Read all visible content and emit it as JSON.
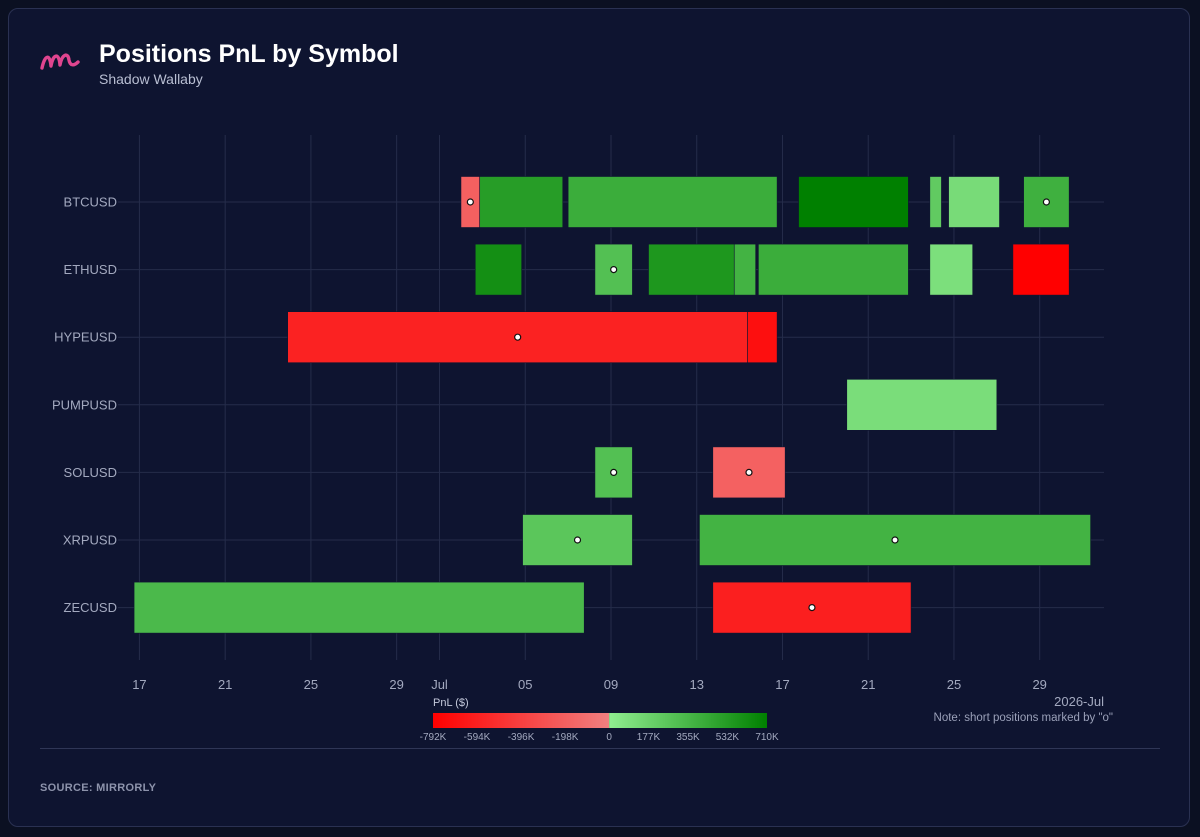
{
  "header": {
    "title": "Positions PnL by Symbol",
    "subtitle": "Shadow Wallaby",
    "logo_icon": "mirrorly-logo-icon"
  },
  "footer": {
    "source": "SOURCE: MIRRORLY",
    "note": "Note: short positions marked by \"o\""
  },
  "colors": {
    "background": "#0e1430",
    "grid": "#252c4a",
    "logo": "#e0458f",
    "negative_max": "#ff0000",
    "negative_min": "#f08080",
    "positive_min": "#90ee90",
    "positive_max": "#008000"
  },
  "chart_data": {
    "type": "timeline",
    "title": "Positions PnL by Symbol",
    "xlabel": "",
    "ylabel": "",
    "x_axis": {
      "type": "date",
      "start": "2026-06-16",
      "end": "2026-08-01",
      "tick_labels": [
        "17",
        "21",
        "25",
        "29",
        "Jul",
        "05",
        "09",
        "13",
        "17",
        "21",
        "25",
        "29"
      ],
      "tick_dates": [
        "2026-06-17",
        "2026-06-21",
        "2026-06-25",
        "2026-06-29",
        "2026-07-01",
        "2026-07-05",
        "2026-07-09",
        "2026-07-13",
        "2026-07-17",
        "2026-07-21",
        "2026-07-25",
        "2026-07-29"
      ],
      "secondary_label": "2026-Jul"
    },
    "categories": [
      "BTCUSD",
      "ETHUSD",
      "HYPEUSD",
      "PUMPUSD",
      "SOLUSD",
      "XRPUSD",
      "ZECUSD"
    ],
    "grid": true,
    "colorbar": {
      "title": "PnL ($)",
      "min": -792000,
      "max": 710000,
      "tick_labels": [
        "-792K",
        "-594K",
        "-396K",
        "-198K",
        "0",
        "177K",
        "355K",
        "532K",
        "710K"
      ],
      "tick_values": [
        -792000,
        -594000,
        -396000,
        -198000,
        0,
        177000,
        355000,
        532000,
        710000
      ]
    },
    "positions": [
      {
        "symbol": "BTCUSD",
        "start": "2026-07-02T00:00",
        "end": "2026-07-02T21:00",
        "pnl": -200000,
        "short": true
      },
      {
        "symbol": "BTCUSD",
        "start": "2026-07-02T21:00",
        "end": "2026-07-06T18:00",
        "pnl": 520000,
        "short": false
      },
      {
        "symbol": "BTCUSD",
        "start": "2026-07-07T00:00",
        "end": "2026-07-16T18:00",
        "pnl": 420000,
        "short": false
      },
      {
        "symbol": "BTCUSD",
        "start": "2026-07-17T18:00",
        "end": "2026-07-22T21:00",
        "pnl": 710000,
        "short": false
      },
      {
        "symbol": "BTCUSD",
        "start": "2026-07-23T21:00",
        "end": "2026-07-24T10:00",
        "pnl": 230000,
        "short": false
      },
      {
        "symbol": "BTCUSD",
        "start": "2026-07-24T18:00",
        "end": "2026-07-27T03:00",
        "pnl": 120000,
        "short": false
      },
      {
        "symbol": "BTCUSD",
        "start": "2026-07-28T06:00",
        "end": "2026-07-30T09:00",
        "pnl": 400000,
        "short": true
      },
      {
        "symbol": "ETHUSD",
        "start": "2026-07-02T16:00",
        "end": "2026-07-04T20:00",
        "pnl": 610000,
        "short": false
      },
      {
        "symbol": "ETHUSD",
        "start": "2026-07-08T06:00",
        "end": "2026-07-10T00:00",
        "pnl": 300000,
        "short": true
      },
      {
        "symbol": "ETHUSD",
        "start": "2026-07-10T18:00",
        "end": "2026-07-14T18:00",
        "pnl": 560000,
        "short": false
      },
      {
        "symbol": "ETHUSD",
        "start": "2026-07-14T18:00",
        "end": "2026-07-15T18:00",
        "pnl": 380000,
        "short": false
      },
      {
        "symbol": "ETHUSD",
        "start": "2026-07-15T21:00",
        "end": "2026-07-22T21:00",
        "pnl": 420000,
        "short": false
      },
      {
        "symbol": "ETHUSD",
        "start": "2026-07-23T21:00",
        "end": "2026-07-25T21:00",
        "pnl": 100000,
        "short": false
      },
      {
        "symbol": "ETHUSD",
        "start": "2026-07-27T18:00",
        "end": "2026-07-30T09:00",
        "pnl": -792000,
        "short": false
      },
      {
        "symbol": "HYPEUSD",
        "start": "2026-06-23T22:00",
        "end": "2026-07-15T09:00",
        "pnl": -580000,
        "short": true
      },
      {
        "symbol": "HYPEUSD",
        "start": "2026-07-15T09:00",
        "end": "2026-07-16T18:00",
        "pnl": -700000,
        "short": false
      },
      {
        "symbol": "PUMPUSD",
        "start": "2026-07-20T00:00",
        "end": "2026-07-27T00:00",
        "pnl": 110000,
        "short": false
      },
      {
        "symbol": "SOLUSD",
        "start": "2026-07-08T06:00",
        "end": "2026-07-10T00:00",
        "pnl": 300000,
        "short": true
      },
      {
        "symbol": "SOLUSD",
        "start": "2026-07-13T18:00",
        "end": "2026-07-17T03:00",
        "pnl": -190000,
        "short": true
      },
      {
        "symbol": "XRPUSD",
        "start": "2026-07-04T21:00",
        "end": "2026-07-10T00:00",
        "pnl": 260000,
        "short": true
      },
      {
        "symbol": "XRPUSD",
        "start": "2026-07-13T03:00",
        "end": "2026-07-31T09:00",
        "pnl": 380000,
        "short": true
      },
      {
        "symbol": "ZECUSD",
        "start": "2026-06-16T18:00",
        "end": "2026-07-07T18:00",
        "pnl": 340000,
        "short": false
      },
      {
        "symbol": "ZECUSD",
        "start": "2026-07-13T18:00",
        "end": "2026-07-23T00:00",
        "pnl": -600000,
        "short": true
      }
    ]
  }
}
